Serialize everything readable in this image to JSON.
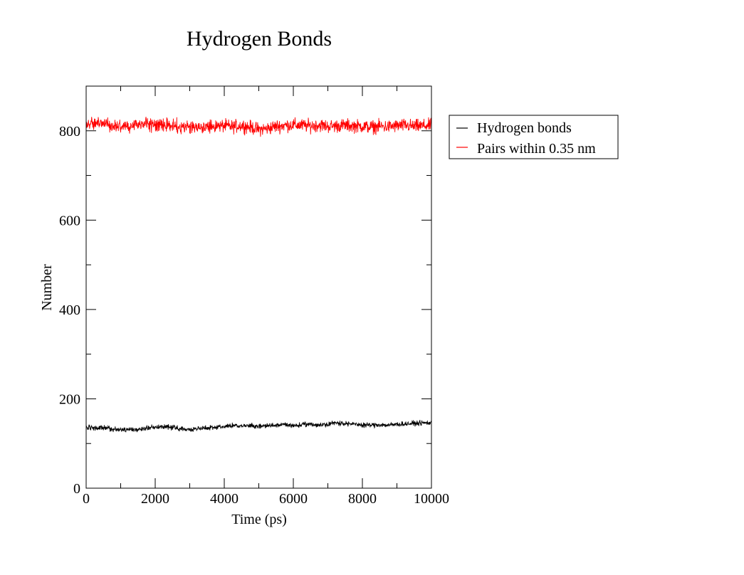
{
  "chart_data": {
    "type": "line",
    "title": "Hydrogen Bonds",
    "xlabel": "Time (ps)",
    "ylabel": "Number",
    "xlim": [
      0,
      10000
    ],
    "ylim": [
      0,
      900
    ],
    "x_ticks": [
      0,
      2000,
      4000,
      6000,
      8000,
      10000
    ],
    "x_tick_labels": [
      "0",
      "2000",
      "4000",
      "6000",
      "8000",
      "10000"
    ],
    "y_ticks": [
      0,
      200,
      400,
      600,
      800
    ],
    "y_tick_labels": [
      "0",
      "200",
      "400",
      "600",
      "800"
    ],
    "x_minor_step": 1000,
    "y_minor_step": 100,
    "grid": false,
    "legend_position": "right, outside plot",
    "series": [
      {
        "name": "Hydrogen bonds",
        "color": "#000000",
        "x": [
          0,
          250,
          500,
          750,
          1000,
          1250,
          1500,
          1750,
          2000,
          2250,
          2500,
          2750,
          3000,
          3250,
          3500,
          3750,
          4000,
          4250,
          4500,
          4750,
          5000,
          5250,
          5500,
          5750,
          6000,
          6250,
          6500,
          6750,
          7000,
          7250,
          7500,
          7750,
          8000,
          8250,
          8500,
          8750,
          9000,
          9250,
          9500,
          9750,
          10000
        ],
        "y": [
          136,
          134,
          135,
          132,
          131,
          133,
          130,
          135,
          137,
          138,
          136,
          133,
          131,
          134,
          135,
          137,
          138,
          140,
          139,
          140,
          138,
          140,
          141,
          142,
          140,
          142,
          143,
          141,
          144,
          146,
          145,
          143,
          142,
          141,
          142,
          141,
          143,
          144,
          145,
          146,
          146
        ],
        "fluctuation": 8
      },
      {
        "name": "Pairs within 0.35 nm",
        "color": "#ff0000",
        "x": [
          0,
          250,
          500,
          750,
          1000,
          1250,
          1500,
          1750,
          2000,
          2250,
          2500,
          2750,
          3000,
          3250,
          3500,
          3750,
          4000,
          4250,
          4500,
          4750,
          5000,
          5250,
          5500,
          5750,
          6000,
          6250,
          6500,
          6750,
          7000,
          7250,
          7500,
          7750,
          8000,
          8250,
          8500,
          8750,
          9000,
          9250,
          9500,
          9750,
          10000
        ],
        "y": [
          815,
          818,
          816,
          813,
          811,
          812,
          815,
          816,
          813,
          812,
          812,
          810,
          809,
          811,
          808,
          810,
          811,
          809,
          812,
          808,
          803,
          805,
          810,
          812,
          813,
          812,
          811,
          813,
          810,
          811,
          812,
          811,
          810,
          808,
          810,
          809,
          811,
          812,
          810,
          811,
          812
        ],
        "fluctuation": 22
      }
    ]
  }
}
